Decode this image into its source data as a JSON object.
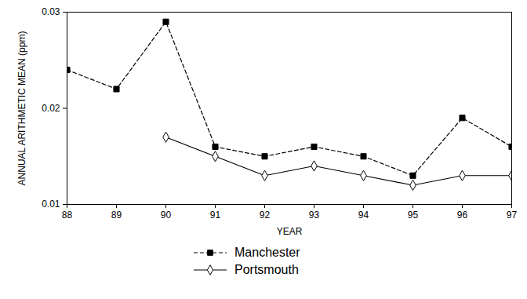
{
  "chart_data": {
    "type": "line",
    "x_label": "YEAR",
    "y_label": "ANNUAL ARITHMETIC MEAN (ppm)",
    "x": [
      88,
      89,
      90,
      91,
      92,
      93,
      94,
      95,
      96,
      97
    ],
    "series": [
      {
        "name": "Manchester",
        "color": "#000000",
        "marker": "square",
        "line_style": "dashed",
        "values": [
          0.024,
          0.022,
          0.029,
          0.016,
          0.015,
          0.016,
          0.015,
          0.013,
          0.019,
          0.016
        ]
      },
      {
        "name": "Portsmouth",
        "color": "#000000",
        "marker": "diamond",
        "line_style": "solid",
        "values": [
          null,
          null,
          0.017,
          0.015,
          0.013,
          0.014,
          0.013,
          0.012,
          0.013,
          0.013
        ]
      }
    ],
    "xlim": [
      88,
      97
    ],
    "xticks": [
      88,
      89,
      90,
      91,
      92,
      93,
      94,
      95,
      96,
      97
    ],
    "ylim": [
      0.01,
      0.03
    ],
    "yticks": [
      0.01,
      0.02,
      0.03
    ],
    "grid": false,
    "legend": "bottom"
  }
}
